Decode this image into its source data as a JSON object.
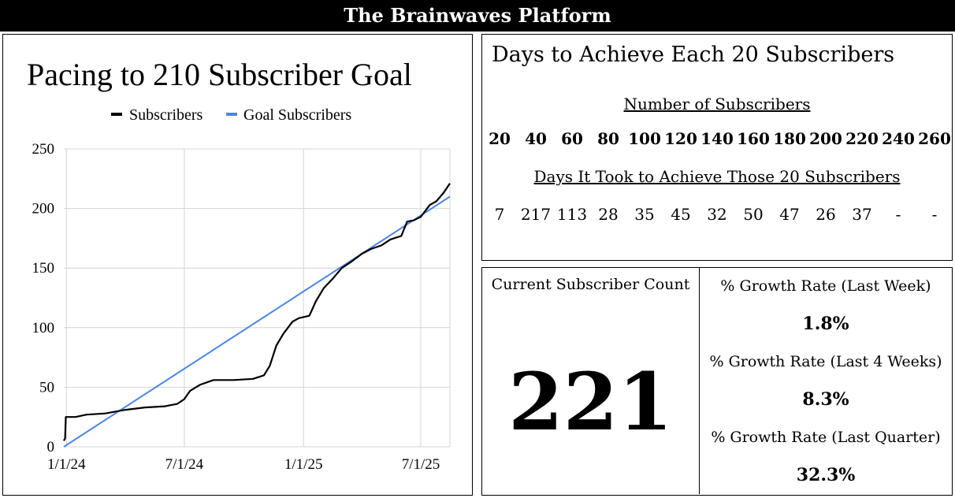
{
  "banner": {
    "title": "The Brainwaves Platform"
  },
  "chart_data": {
    "type": "line",
    "title": "Pacing to 210 Subscriber Goal",
    "xlabel": "",
    "ylabel": "",
    "ylim": [
      0,
      250
    ],
    "yticks": [
      0,
      50,
      100,
      150,
      200,
      250
    ],
    "x_tick_labels": [
      "1/1/24",
      "7/1/24",
      "1/1/25",
      "7/1/25"
    ],
    "x_tick_dates": [
      "2024-01-01",
      "2024-07-01",
      "2025-01-01",
      "2025-07-01"
    ],
    "x_range": [
      "2023-12-28",
      "2025-08-15"
    ],
    "grid": true,
    "legend_position": "top-center",
    "series": [
      {
        "name": "Subscribers",
        "color": "#000000",
        "points": [
          [
            "2023-12-28",
            5
          ],
          [
            "2023-12-30",
            7
          ],
          [
            "2023-12-31",
            25
          ],
          [
            "2024-01-15",
            25
          ],
          [
            "2024-02-01",
            27
          ],
          [
            "2024-03-01",
            28
          ],
          [
            "2024-04-01",
            31
          ],
          [
            "2024-05-01",
            33
          ],
          [
            "2024-06-01",
            34
          ],
          [
            "2024-06-20",
            36
          ],
          [
            "2024-07-01",
            40
          ],
          [
            "2024-07-10",
            47
          ],
          [
            "2024-07-25",
            52
          ],
          [
            "2024-08-15",
            56
          ],
          [
            "2024-09-15",
            56
          ],
          [
            "2024-10-15",
            57
          ],
          [
            "2024-11-01",
            60
          ],
          [
            "2024-11-10",
            68
          ],
          [
            "2024-11-20",
            85
          ],
          [
            "2024-12-01",
            95
          ],
          [
            "2024-12-15",
            105
          ],
          [
            "2024-12-25",
            108
          ],
          [
            "2025-01-10",
            110
          ],
          [
            "2025-01-20",
            122
          ],
          [
            "2025-02-01",
            133
          ],
          [
            "2025-02-15",
            141
          ],
          [
            "2025-03-01",
            150
          ],
          [
            "2025-03-15",
            155
          ],
          [
            "2025-04-01",
            162
          ],
          [
            "2025-04-15",
            166
          ],
          [
            "2025-05-01",
            169
          ],
          [
            "2025-05-15",
            174
          ],
          [
            "2025-06-01",
            177
          ],
          [
            "2025-06-10",
            189
          ],
          [
            "2025-06-20",
            190
          ],
          [
            "2025-07-01",
            193
          ],
          [
            "2025-07-15",
            203
          ],
          [
            "2025-07-25",
            206
          ],
          [
            "2025-08-05",
            213
          ],
          [
            "2025-08-15",
            221
          ]
        ]
      },
      {
        "name": "Goal Subscribers",
        "color": "#4a86e8",
        "points": [
          [
            "2023-12-28",
            0
          ],
          [
            "2025-08-15",
            210
          ]
        ]
      }
    ]
  },
  "days_table": {
    "title": "Days to Achieve Each 20 Subscribers",
    "subscribers_heading": "Number of Subscribers",
    "subscriber_marks": [
      "20",
      "40",
      "60",
      "80",
      "100",
      "120",
      "140",
      "160",
      "180",
      "200",
      "220",
      "240",
      "260"
    ],
    "days_heading": "Days It Took to Achieve Those 20 Subscribers",
    "days_values": [
      "7",
      "217",
      "113",
      "28",
      "35",
      "45",
      "32",
      "50",
      "47",
      "26",
      "37",
      "-",
      "-"
    ]
  },
  "stats": {
    "current_label": "Current Subscriber Count",
    "current_value": "221",
    "growth": [
      {
        "label": "% Growth Rate (Last Week)",
        "value": "1.8%"
      },
      {
        "label": "% Growth Rate (Last 4 Weeks)",
        "value": "8.3%"
      },
      {
        "label": "% Growth Rate (Last Quarter)",
        "value": "32.3%"
      }
    ]
  }
}
